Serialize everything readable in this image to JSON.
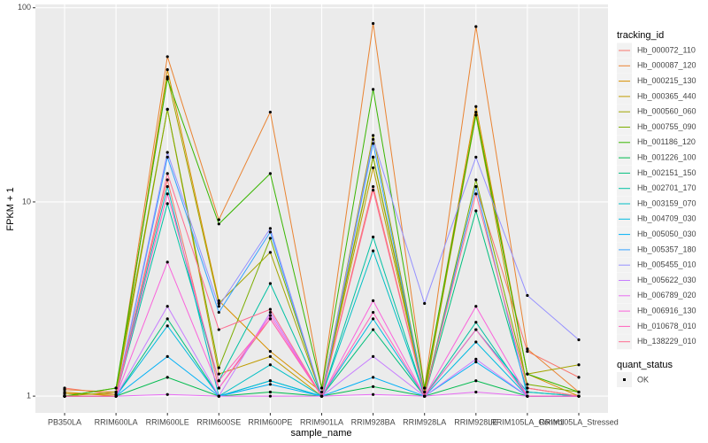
{
  "chart_data": {
    "type": "line",
    "log_y": true,
    "grid": true,
    "x_label": "sample_name",
    "y_label": "FPKM + 1",
    "legend_title": "tracking_id",
    "legend_position": "right",
    "point_legend_title": "quant_status",
    "point_legend_label": "OK",
    "categories": [
      "PB350LA",
      "RRIM600LA",
      "RRIM600LE",
      "RRIM600SE",
      "RRIM600PE",
      "RRIM901LA",
      "RRIM928BA",
      "RRIM928LA",
      "RRIM928LE",
      "RRIM105LA_Control",
      "RRIM105LA_Stressed"
    ],
    "ylim": [
      0.82,
      104
    ],
    "yticks": [
      1,
      10,
      100
    ],
    "series": [
      {
        "name": "Hb_000072_110",
        "color": "#F8766D",
        "values": [
          1.1,
          1.02,
          13,
          1.1,
          2.5,
          1.0,
          12,
          1.0,
          12,
          1.7,
          1.25
        ]
      },
      {
        "name": "Hb_000087_120",
        "color": "#EA8331",
        "values": [
          1.08,
          1.05,
          56,
          8.1,
          29,
          1.1,
          83,
          1.1,
          80,
          1.75,
          1.05
        ]
      },
      {
        "name": "Hb_000215_130",
        "color": "#D89000",
        "values": [
          1.05,
          1.0,
          48,
          3.1,
          1.7,
          1.05,
          17,
          1.05,
          31,
          1.3,
          1.0
        ]
      },
      {
        "name": "Hb_000365_440",
        "color": "#C09B00",
        "values": [
          1.03,
          1.02,
          30,
          1.3,
          1.6,
          1.0,
          15,
          1.0,
          28,
          1.1,
          1.0
        ]
      },
      {
        "name": "Hb_000560_060",
        "color": "#A3A500",
        "values": [
          1.0,
          1.05,
          44,
          3.0,
          5.5,
          1.0,
          22,
          1.0,
          29,
          1.3,
          1.45
        ]
      },
      {
        "name": "Hb_000755_090",
        "color": "#7CAE00",
        "values": [
          1.0,
          1.1,
          30,
          1.4,
          6.5,
          1.0,
          17,
          1.0,
          13,
          1.15,
          1.05
        ]
      },
      {
        "name": "Hb_001186_120",
        "color": "#39B600",
        "values": [
          1.0,
          1.1,
          43,
          7.7,
          14,
          1.1,
          38,
          1.1,
          28,
          1.3,
          1.05
        ]
      },
      {
        "name": "Hb_001226_100",
        "color": "#00BB4E",
        "values": [
          1.0,
          1.0,
          1.25,
          1.0,
          1.05,
          1.0,
          1.12,
          1.0,
          1.2,
          1.0,
          1.0
        ]
      },
      {
        "name": "Hb_002151_150",
        "color": "#00BF7D",
        "values": [
          1.0,
          1.0,
          2.5,
          1.0,
          1.2,
          1.0,
          2.2,
          1.0,
          9,
          1.05,
          1.0
        ]
      },
      {
        "name": "Hb_002701_170",
        "color": "#00C1A3",
        "values": [
          1.0,
          1.0,
          9.8,
          1.2,
          3.8,
          1.0,
          6.6,
          1.0,
          2.4,
          1.0,
          1.0
        ]
      },
      {
        "name": "Hb_003159_070",
        "color": "#00BFC4",
        "values": [
          1.0,
          1.0,
          12,
          1.0,
          1.45,
          1.0,
          5.6,
          1.0,
          2.2,
          1.05,
          1.0
        ]
      },
      {
        "name": "Hb_004709_030",
        "color": "#00BAE0",
        "values": [
          1.0,
          1.0,
          2.3,
          1.0,
          1.2,
          1.0,
          2.5,
          1.0,
          1.9,
          1.0,
          1.0
        ]
      },
      {
        "name": "Hb_005050_030",
        "color": "#00B0F6",
        "values": [
          1.0,
          1.0,
          1.6,
          1.0,
          1.15,
          1.0,
          1.25,
          1.0,
          1.5,
          1.0,
          1.0
        ]
      },
      {
        "name": "Hb_005357_180",
        "color": "#35A2FF",
        "values": [
          1.0,
          1.0,
          17,
          2.7,
          7,
          1.0,
          20,
          1.0,
          12,
          1.0,
          1.0
        ]
      },
      {
        "name": "Hb_005455_010",
        "color": "#9590FF",
        "values": [
          1.0,
          1.0,
          18,
          2.9,
          7.3,
          1.0,
          21,
          3.0,
          17,
          3.3,
          1.95
        ]
      },
      {
        "name": "Hb_005622_030",
        "color": "#C77CFF",
        "values": [
          1.0,
          1.0,
          2.9,
          1.0,
          2.7,
          1.0,
          1.6,
          1.0,
          1.55,
          1.0,
          1.0
        ]
      },
      {
        "name": "Hb_006789_020",
        "color": "#E76BF3",
        "values": [
          1.0,
          1.0,
          1.02,
          1.0,
          1.0,
          1.0,
          1.02,
          1.0,
          1.05,
          1.0,
          1.0
        ]
      },
      {
        "name": "Hb_006916_130",
        "color": "#FA62DB",
        "values": [
          1.0,
          1.0,
          4.9,
          1.1,
          2.6,
          1.0,
          3.1,
          1.0,
          2.9,
          1.0,
          1.0
        ]
      },
      {
        "name": "Hb_010678_010",
        "color": "#FF62BC",
        "values": [
          1.0,
          1.0,
          11,
          1.2,
          2.5,
          1.0,
          2.7,
          1.0,
          2.2,
          1.0,
          1.0
        ]
      },
      {
        "name": "Hb_138229_010",
        "color": "#FF6C91",
        "values": [
          1.0,
          1.0,
          14,
          2.2,
          2.8,
          1.0,
          11.5,
          1.0,
          11,
          1.1,
          1.0
        ]
      }
    ]
  }
}
